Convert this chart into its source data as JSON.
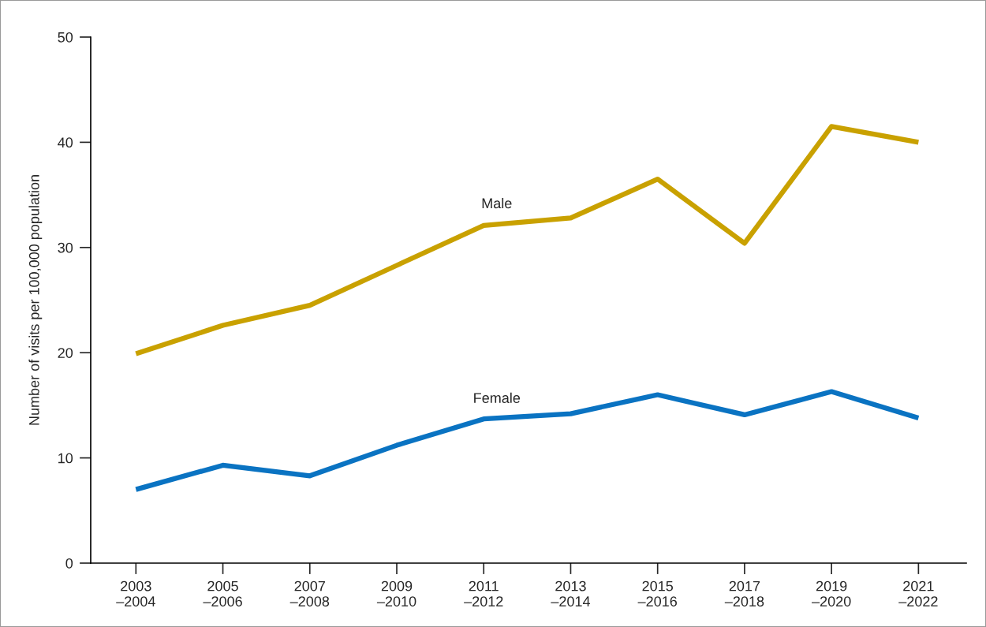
{
  "chart_data": {
    "type": "line",
    "ylabel": "Number of visits per 100,000 population",
    "categories": [
      "2003\n–2004",
      "2005\n–2006",
      "2007\n–2008",
      "2009\n–2010",
      "2011\n–2012",
      "2013\n–2014",
      "2015\n–2016",
      "2017\n–2018",
      "2019\n–2020",
      "2021\n–2022"
    ],
    "series": [
      {
        "name": "Male",
        "color": "#c9a100",
        "values": [
          19.9,
          22.6,
          24.5,
          28.3,
          32.1,
          32.8,
          36.5,
          30.4,
          41.5,
          40.0
        ]
      },
      {
        "name": "Female",
        "color": "#0a73c2",
        "values": [
          7.0,
          9.3,
          8.3,
          11.2,
          13.7,
          14.2,
          16.0,
          14.1,
          16.3,
          13.8
        ]
      }
    ],
    "ylim": [
      0,
      50
    ],
    "yticks": [
      0,
      10,
      20,
      30,
      40,
      50
    ],
    "grid": false,
    "legend": false,
    "marker": "none",
    "line_style": "solid"
  }
}
